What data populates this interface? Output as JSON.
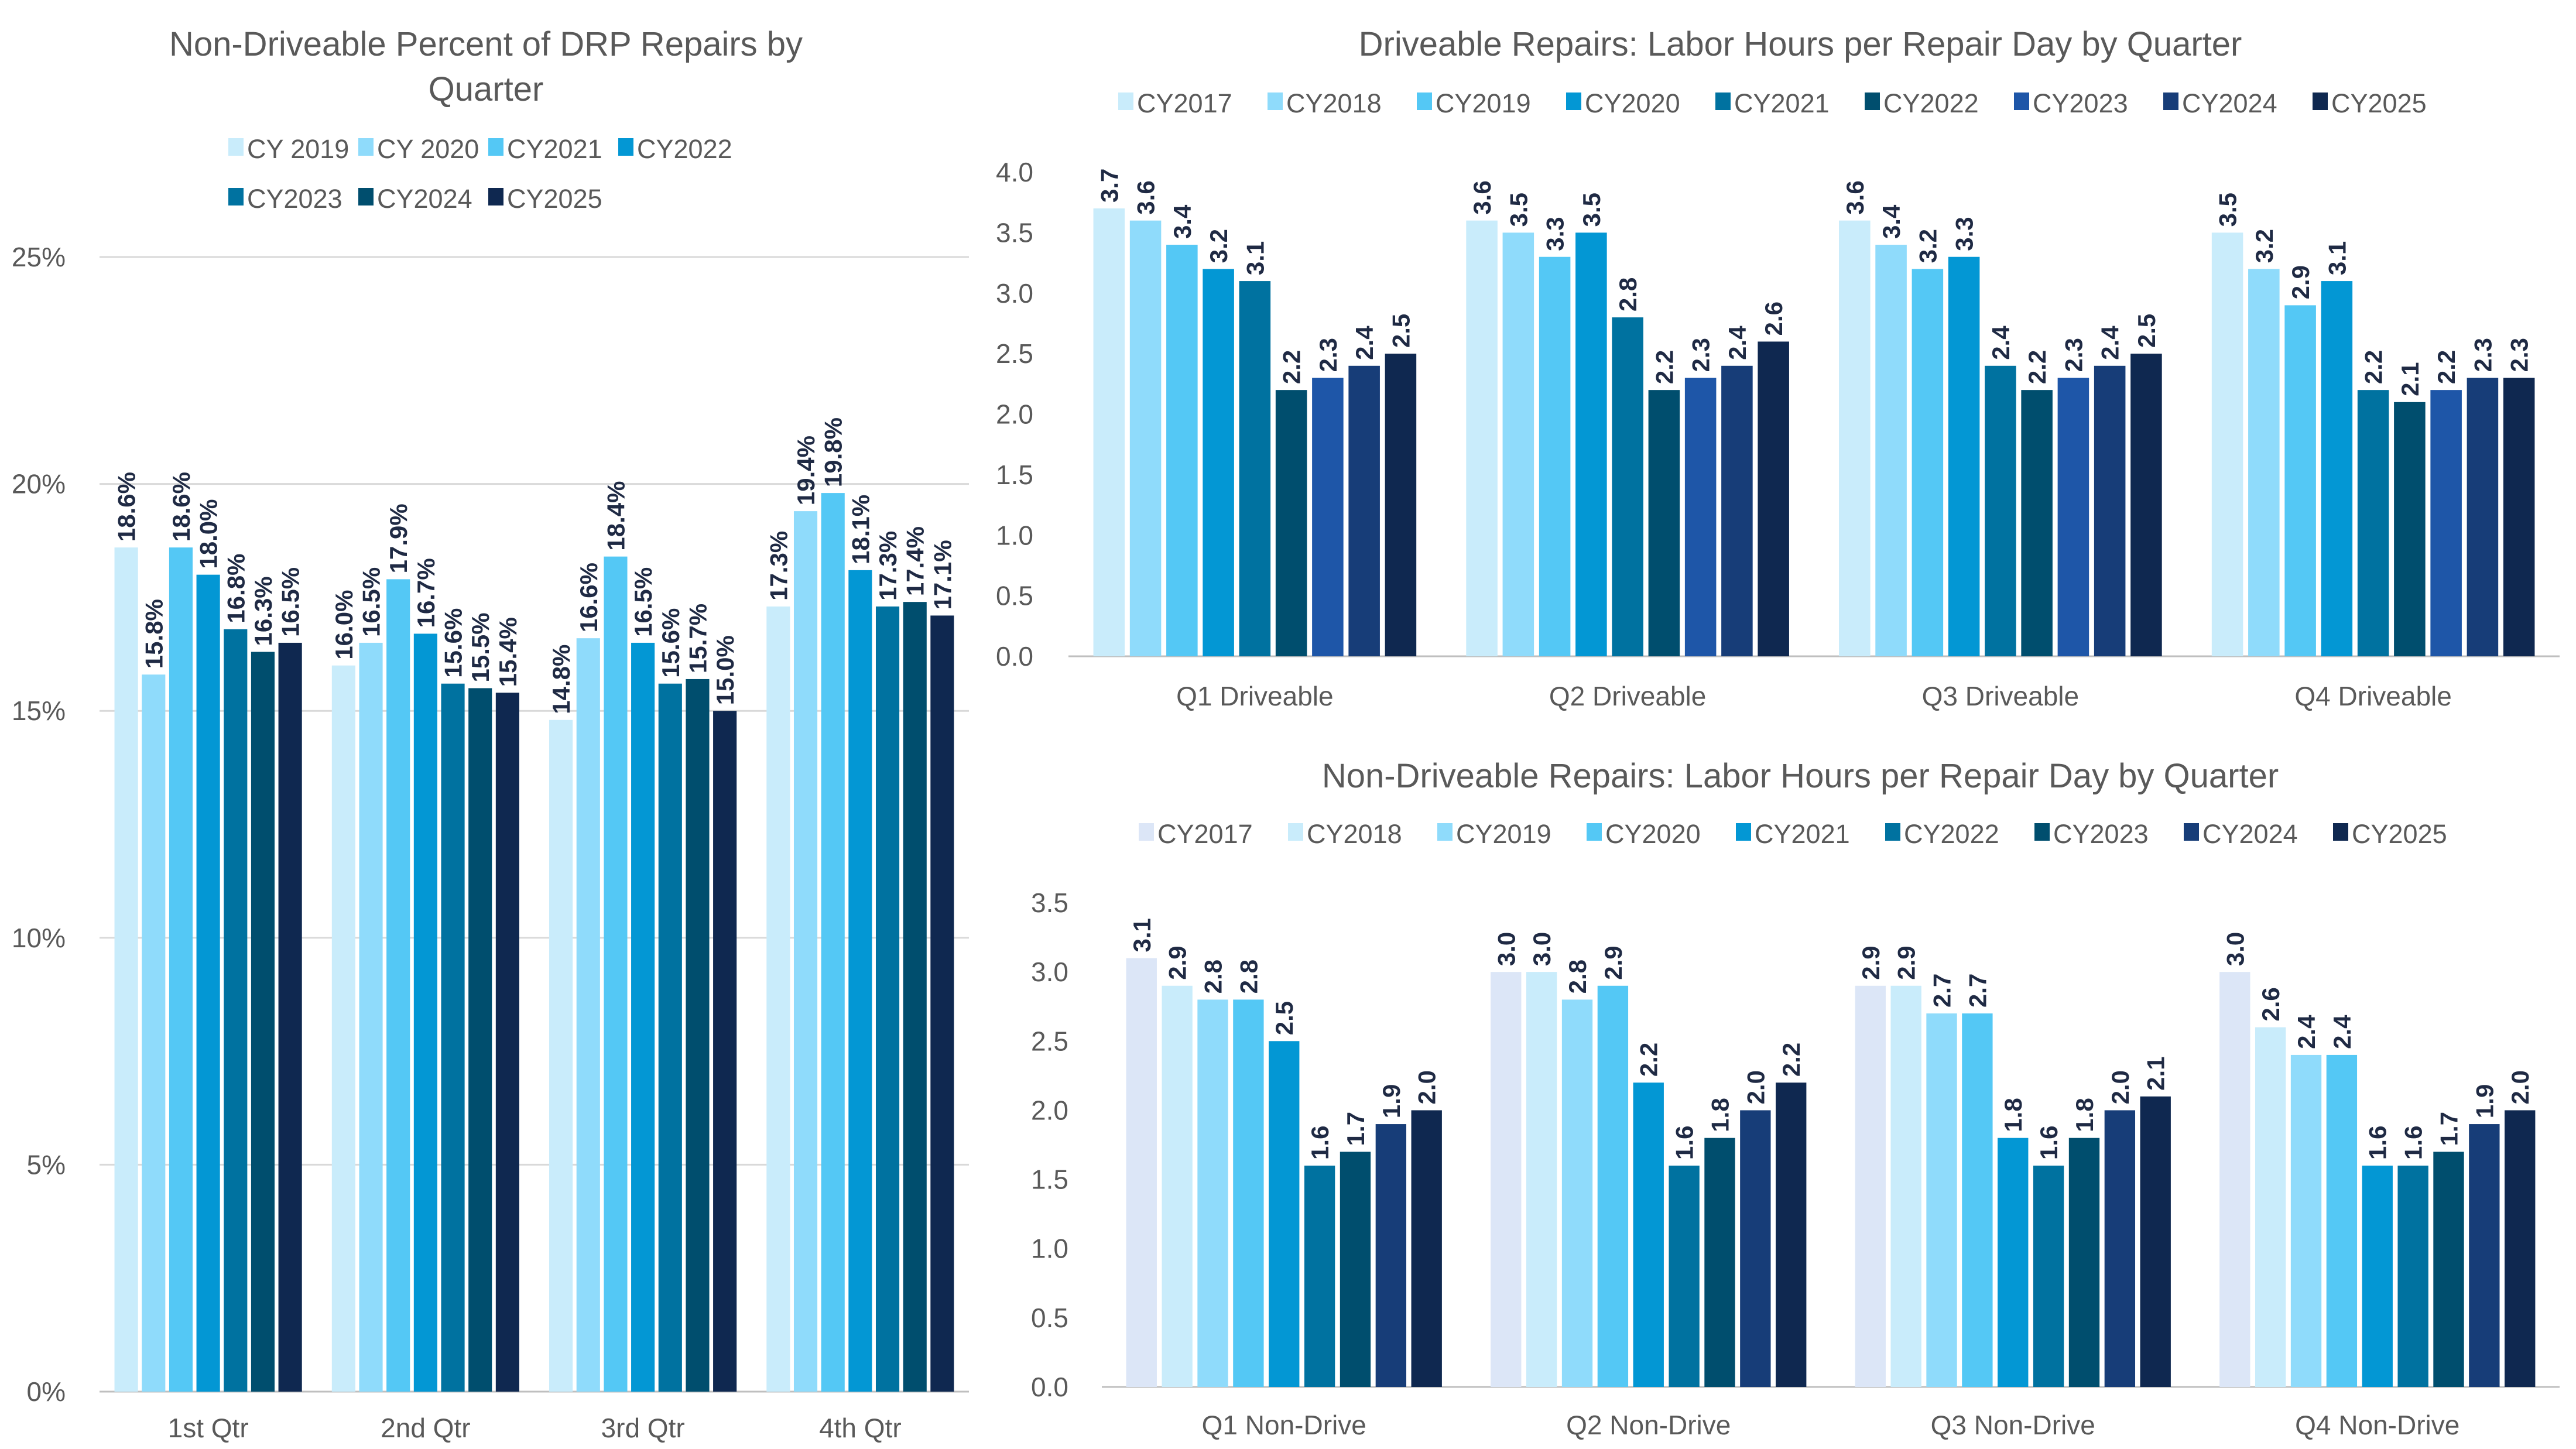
{
  "chart_data": [
    {
      "type": "bar",
      "title": [
        "Non-Driveable Percent of DRP Repairs by",
        "Quarter"
      ],
      "categories": [
        "1st Qtr",
        "2nd Qtr",
        "3rd Qtr",
        "4th Qtr"
      ],
      "ylim": [
        0,
        25
      ],
      "yticks": [
        0,
        5,
        10,
        15,
        20,
        25
      ],
      "ytick_format": "percent",
      "grid": true,
      "legend": "top",
      "series": [
        {
          "name": "CY 2019",
          "color": "#C9ECFB",
          "values": [
            18.6,
            16.0,
            14.8,
            17.3
          ]
        },
        {
          "name": "CY 2020",
          "color": "#8FDBFB",
          "values": [
            15.8,
            16.5,
            16.6,
            19.4
          ]
        },
        {
          "name": "CY2021",
          "color": "#54C8F5",
          "values": [
            18.6,
            17.9,
            18.4,
            19.8
          ]
        },
        {
          "name": "CY2022",
          "color": "#0397D4",
          "values": [
            18.0,
            16.7,
            16.5,
            18.1
          ]
        },
        {
          "name": "CY2023",
          "color": "#0072A0",
          "values": [
            16.8,
            15.6,
            15.6,
            17.3
          ]
        },
        {
          "name": "CY2024",
          "color": "#004E6E",
          "values": [
            16.3,
            15.5,
            15.7,
            17.4
          ]
        },
        {
          "name": "CY2025",
          "color": "#0F2850",
          "values": [
            16.5,
            15.4,
            15.0,
            17.1
          ]
        }
      ]
    },
    {
      "type": "bar",
      "title": [
        "Driveable Repairs: Labor Hours per Repair Day by Quarter"
      ],
      "categories": [
        "Q1 Driveable",
        "Q2 Driveable",
        "Q3 Driveable",
        "Q4 Driveable"
      ],
      "ylim": [
        0,
        4.0
      ],
      "yticks": [
        0,
        0.5,
        1.0,
        1.5,
        2.0,
        2.5,
        3.0,
        3.5,
        4.0
      ],
      "grid": false,
      "legend": "top",
      "series": [
        {
          "name": "CY2017",
          "color": "#C9ECFB",
          "values": [
            3.7,
            3.6,
            3.6,
            3.5
          ]
        },
        {
          "name": "CY2018",
          "color": "#8FDBFB",
          "values": [
            3.6,
            3.5,
            3.4,
            3.2
          ]
        },
        {
          "name": "CY2019",
          "color": "#54C8F5",
          "values": [
            3.4,
            3.3,
            3.2,
            2.9
          ]
        },
        {
          "name": "CY2020",
          "color": "#0397D4",
          "values": [
            3.2,
            3.5,
            3.3,
            3.1
          ]
        },
        {
          "name": "CY2021",
          "color": "#0072A0",
          "values": [
            3.1,
            2.8,
            2.4,
            2.2
          ]
        },
        {
          "name": "CY2022",
          "color": "#004E6E",
          "values": [
            2.2,
            2.2,
            2.2,
            2.1
          ]
        },
        {
          "name": "CY2023",
          "color": "#1E56A8",
          "values": [
            2.3,
            2.3,
            2.3,
            2.2
          ]
        },
        {
          "name": "CY2024",
          "color": "#173D78",
          "values": [
            2.4,
            2.4,
            2.4,
            2.3
          ]
        },
        {
          "name": "CY2025",
          "color": "#0F2850",
          "values": [
            2.5,
            2.6,
            2.5,
            2.3
          ]
        }
      ]
    },
    {
      "type": "bar",
      "title": [
        "Non-Driveable Repairs: Labor Hours per Repair Day by Quarter"
      ],
      "categories": [
        "Q1 Non-Drive",
        "Q2 Non-Drive",
        "Q3 Non-Drive",
        "Q4 Non-Drive"
      ],
      "ylim": [
        0,
        3.5
      ],
      "yticks": [
        0,
        0.5,
        1.0,
        1.5,
        2.0,
        2.5,
        3.0,
        3.5
      ],
      "grid": false,
      "legend": "top",
      "series": [
        {
          "name": "CY2017",
          "color": "#DCE6F7",
          "values": [
            3.1,
            3.0,
            2.9,
            3.0
          ]
        },
        {
          "name": "CY2018",
          "color": "#C9ECFB",
          "values": [
            2.9,
            3.0,
            2.9,
            2.6
          ]
        },
        {
          "name": "CY2019",
          "color": "#8FDBFB",
          "values": [
            2.8,
            2.8,
            2.7,
            2.4
          ]
        },
        {
          "name": "CY2020",
          "color": "#54C8F5",
          "values": [
            2.8,
            2.9,
            2.7,
            2.4
          ]
        },
        {
          "name": "CY2021",
          "color": "#0397D4",
          "values": [
            2.5,
            2.2,
            1.8,
            1.6
          ]
        },
        {
          "name": "CY2022",
          "color": "#0072A0",
          "values": [
            1.6,
            1.6,
            1.6,
            1.6
          ]
        },
        {
          "name": "CY2023",
          "color": "#004E6E",
          "values": [
            1.7,
            1.8,
            1.8,
            1.7
          ]
        },
        {
          "name": "CY2024",
          "color": "#173D78",
          "values": [
            1.9,
            2.0,
            2.0,
            1.9
          ]
        },
        {
          "name": "CY2025",
          "color": "#0F2850",
          "values": [
            2.0,
            2.2,
            2.1,
            2.0
          ]
        }
      ]
    }
  ]
}
